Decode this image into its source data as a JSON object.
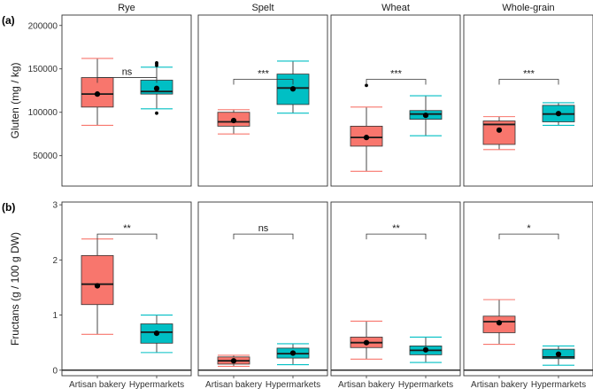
{
  "chart_data": {
    "type": "boxplot",
    "facets": [
      "Rye",
      "Spelt",
      "Wheat",
      "Whole-grain"
    ],
    "categories": [
      "Artisan bakery",
      "Hypermarkets"
    ],
    "colors": {
      "Artisan bakery": "#F8766D",
      "Hypermarkets": "#00BFC4"
    },
    "rows": [
      {
        "tag": "(a)",
        "ylabel": "Gluten (mg / kg)",
        "ylim": [
          15000,
          212000
        ],
        "yticks": [
          50000,
          100000,
          150000,
          200000
        ],
        "ytick_labels": [
          "50000",
          "100000",
          "150000",
          "200000"
        ],
        "zero_line": false,
        "panels": [
          {
            "facet": "Rye",
            "sig": "ns",
            "bracket_y": 140000,
            "boxes": [
              {
                "min": 85000,
                "q1": 106000,
                "median": 121000,
                "q3": 140000,
                "max": 162000,
                "mean": 121000,
                "outliers": []
              },
              {
                "min": 104000,
                "q1": 121000,
                "median": 124000,
                "q3": 137000,
                "max": 152000,
                "mean": 127500,
                "outliers": [
                  154000,
                  156000,
                  157000,
                  99000
                ]
              }
            ]
          },
          {
            "facet": "Spelt",
            "sig": "***",
            "bracket_y": 138000,
            "boxes": [
              {
                "min": 75000,
                "q1": 84000,
                "median": 89000,
                "q3": 100000,
                "max": 103000,
                "mean": 90500,
                "outliers": []
              },
              {
                "min": 99000,
                "q1": 109000,
                "median": 128000,
                "q3": 144000,
                "max": 159000,
                "mean": 127000,
                "outliers": []
              }
            ]
          },
          {
            "facet": "Wheat",
            "sig": "***",
            "bracket_y": 138000,
            "boxes": [
              {
                "min": 32000,
                "q1": 61000,
                "median": 71000,
                "q3": 84000,
                "max": 106000,
                "mean": 71000,
                "outliers": [
                  131000
                ]
              },
              {
                "min": 73000,
                "q1": 92000,
                "median": 98000,
                "q3": 102000,
                "max": 119000,
                "mean": 96500,
                "outliers": []
              }
            ]
          },
          {
            "facet": "Whole-grain",
            "sig": "***",
            "bracket_y": 138000,
            "boxes": [
              {
                "min": 57000,
                "q1": 63000,
                "median": 86000,
                "q3": 90000,
                "max": 95000,
                "mean": 79500,
                "outliers": []
              },
              {
                "min": 85000,
                "q1": 89000,
                "median": 98000,
                "q3": 108000,
                "max": 111000,
                "mean": 98500,
                "outliers": []
              }
            ]
          }
        ]
      },
      {
        "tag": "(b)",
        "ylabel": "Fructans (g / 100 g DW)",
        "ylim": [
          -0.1,
          3.05
        ],
        "yticks": [
          0,
          1,
          2,
          3
        ],
        "ytick_labels": [
          "0",
          "1",
          "2",
          "3"
        ],
        "zero_line": true,
        "panels": [
          {
            "facet": "Rye",
            "sig": "**",
            "bracket_y": 2.47,
            "boxes": [
              {
                "min": 0.65,
                "q1": 1.19,
                "median": 1.56,
                "q3": 2.08,
                "max": 2.38,
                "mean": 1.53,
                "outliers": []
              },
              {
                "min": 0.32,
                "q1": 0.49,
                "median": 0.69,
                "q3": 0.84,
                "max": 1.0,
                "mean": 0.67,
                "outliers": []
              }
            ]
          },
          {
            "facet": "Spelt",
            "sig": "ns",
            "bracket_y": 2.47,
            "boxes": [
              {
                "min": 0.07,
                "q1": 0.11,
                "median": 0.17,
                "q3": 0.24,
                "max": 0.27,
                "mean": 0.17,
                "outliers": []
              },
              {
                "min": 0.1,
                "q1": 0.22,
                "median": 0.3,
                "q3": 0.4,
                "max": 0.48,
                "mean": 0.31,
                "outliers": []
              }
            ]
          },
          {
            "facet": "Wheat",
            "sig": "**",
            "bracket_y": 2.47,
            "boxes": [
              {
                "min": 0.2,
                "q1": 0.41,
                "median": 0.5,
                "q3": 0.6,
                "max": 0.89,
                "mean": 0.5,
                "outliers": []
              },
              {
                "min": 0.14,
                "q1": 0.28,
                "median": 0.36,
                "q3": 0.44,
                "max": 0.6,
                "mean": 0.37,
                "outliers": []
              }
            ]
          },
          {
            "facet": "Whole-grain",
            "sig": "*",
            "bracket_y": 2.47,
            "boxes": [
              {
                "min": 0.47,
                "q1": 0.68,
                "median": 0.88,
                "q3": 0.98,
                "max": 1.28,
                "mean": 0.86,
                "outliers": []
              },
              {
                "min": 0.09,
                "q1": 0.21,
                "median": 0.24,
                "q3": 0.38,
                "max": 0.44,
                "mean": 0.29,
                "outliers": []
              }
            ]
          }
        ]
      }
    ]
  }
}
